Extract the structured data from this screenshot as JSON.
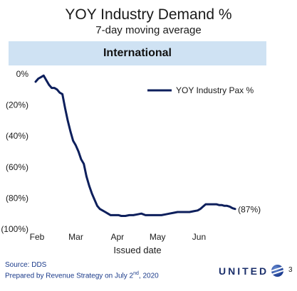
{
  "header": {
    "title": "YOY Industry Demand %",
    "subtitle": "7-day moving average",
    "banner": "International"
  },
  "chart_data": {
    "type": "line",
    "title": "YOY Industry Demand %",
    "subtitle": "7-day moving average",
    "xlabel": "Issued date",
    "ylabel": "",
    "x_ticks": [
      "Feb",
      "Mar",
      "Apr",
      "May",
      "Jun"
    ],
    "y_ticks": [
      "0%",
      "(20%)",
      "(40%)",
      "(60%)",
      "(80%)",
      "(100%)"
    ],
    "ylim": [
      -100,
      0
    ],
    "xlim": [
      "2020-02-01",
      "2020-06-30"
    ],
    "grid": false,
    "legend_position": "top-right",
    "end_label": "(87%)",
    "series": [
      {
        "name": "YOY Industry Pax %",
        "color": "#0d1f5c",
        "x": [
          "2020-02-01",
          "2020-02-03",
          "2020-02-05",
          "2020-02-07",
          "2020-02-09",
          "2020-02-11",
          "2020-02-13",
          "2020-02-15",
          "2020-02-17",
          "2020-02-19",
          "2020-02-21",
          "2020-02-23",
          "2020-02-25",
          "2020-02-27",
          "2020-02-29",
          "2020-03-02",
          "2020-03-04",
          "2020-03-06",
          "2020-03-08",
          "2020-03-10",
          "2020-03-12",
          "2020-03-14",
          "2020-03-16",
          "2020-03-18",
          "2020-03-20",
          "2020-03-22",
          "2020-03-24",
          "2020-03-26",
          "2020-03-28",
          "2020-03-30",
          "2020-04-01",
          "2020-04-03",
          "2020-04-05",
          "2020-04-08",
          "2020-04-11",
          "2020-04-14",
          "2020-04-17",
          "2020-04-20",
          "2020-04-23",
          "2020-04-26",
          "2020-04-29",
          "2020-05-02",
          "2020-05-05",
          "2020-05-08",
          "2020-05-11",
          "2020-05-14",
          "2020-05-17",
          "2020-05-20",
          "2020-05-23",
          "2020-05-26",
          "2020-05-29",
          "2020-06-01",
          "2020-06-03",
          "2020-06-05",
          "2020-06-07",
          "2020-06-09",
          "2020-06-11",
          "2020-06-13",
          "2020-06-15",
          "2020-06-17",
          "2020-06-19",
          "2020-06-21",
          "2020-06-23",
          "2020-06-25",
          "2020-06-27",
          "2020-06-29"
        ],
        "y": [
          -5,
          -3,
          -2,
          -1,
          -4,
          -7,
          -9,
          -9,
          -10,
          -12,
          -13,
          -22,
          -30,
          -37,
          -43,
          -46,
          -50,
          -55,
          -58,
          -66,
          -72,
          -77,
          -81,
          -85,
          -87,
          -88,
          -89,
          -90,
          -91,
          -91,
          -91,
          -91,
          -91.5,
          -91.5,
          -91,
          -91,
          -90.5,
          -90,
          -91,
          -91,
          -91,
          -91,
          -91,
          -90.5,
          -90,
          -89.5,
          -89,
          -89,
          -89,
          -89,
          -88.5,
          -88,
          -87,
          -85.5,
          -84,
          -84,
          -84,
          -84,
          -84,
          -84.5,
          -84.5,
          -85,
          -85,
          -85.5,
          -86.5,
          -87
        ]
      }
    ]
  },
  "footer": {
    "source": "Source: DDS",
    "prepared": "Prepared by Revenue Strategy on July 2nd, 2020",
    "logo": "UNITED",
    "page_number": "3"
  }
}
